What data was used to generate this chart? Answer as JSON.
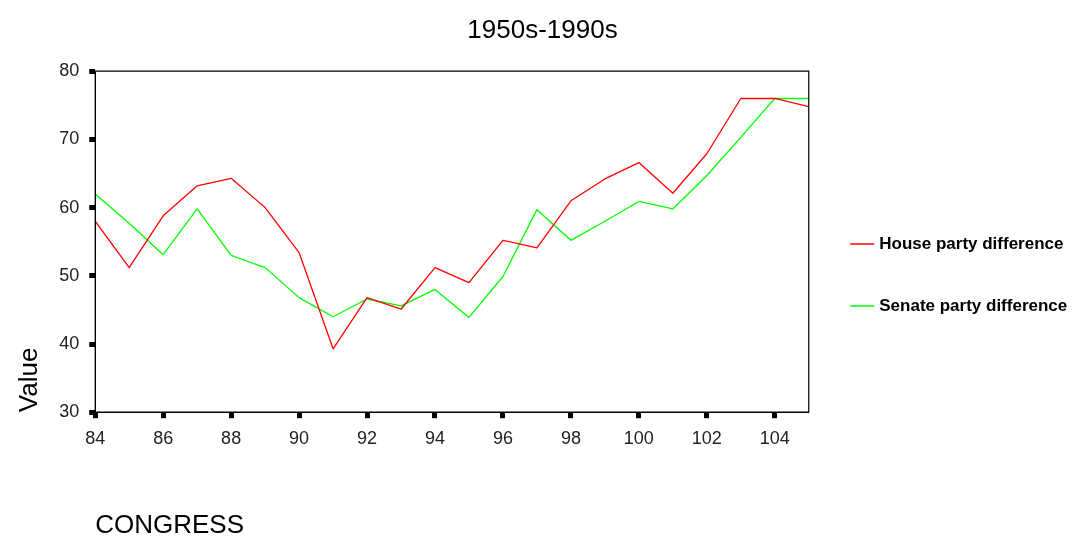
{
  "chart_data": {
    "type": "line",
    "title": "1950s-1990s",
    "xlabel": "CONGRESS",
    "ylabel": "Value",
    "x": [
      84,
      85,
      86,
      87,
      88,
      89,
      90,
      91,
      92,
      93,
      94,
      95,
      96,
      97,
      98,
      99,
      100,
      101,
      102,
      103,
      104,
      105
    ],
    "series": [
      {
        "name": "House party difference",
        "color": "#ff0000",
        "values": [
          58,
          51.2,
          58.8,
          63.2,
          64.3,
          60,
          53.4,
          39.3,
          46.8,
          45.1,
          51.2,
          49,
          55.2,
          54.1,
          61,
          64.2,
          66.6,
          62.1,
          67.9,
          76,
          76,
          74.8
        ]
      },
      {
        "name": "Senate party difference",
        "color": "#00ff00",
        "values": [
          62,
          57.7,
          53.1,
          59.8,
          53,
          51.2,
          46.8,
          44,
          46.6,
          45.6,
          48,
          43.9,
          49.9,
          59.7,
          55.2,
          58,
          60.9,
          59.8,
          64.7,
          70.3,
          76,
          76
        ]
      }
    ],
    "xlim": [
      84,
      105
    ],
    "xticks": [
      84,
      86,
      88,
      90,
      92,
      94,
      96,
      98,
      100,
      102,
      104
    ],
    "ylim": [
      30,
      80
    ],
    "yticks": [
      30,
      40,
      50,
      60,
      70,
      80
    ],
    "grid": false,
    "legend": "right",
    "marker": "none",
    "line_style": "solid"
  }
}
